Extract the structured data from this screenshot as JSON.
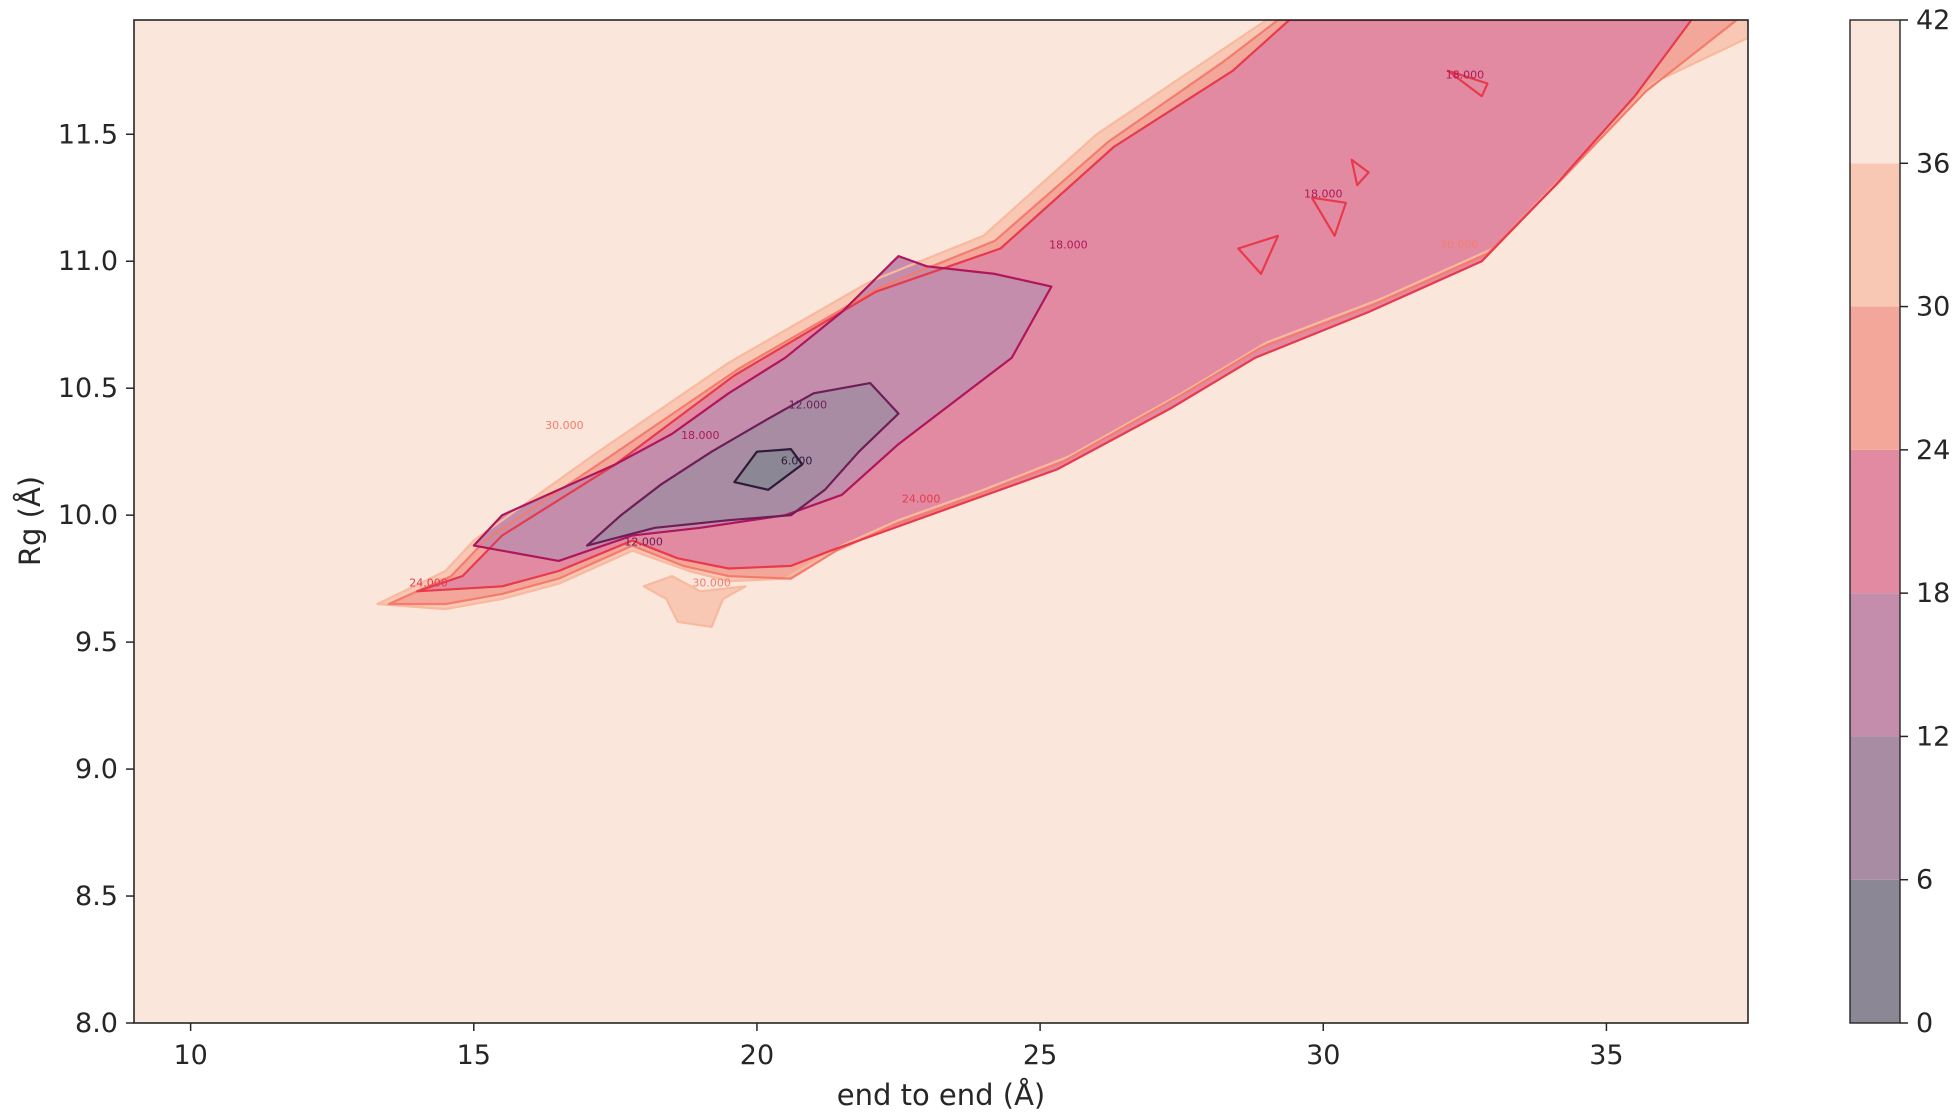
{
  "chart_data": {
    "type": "heatmap",
    "subtype": "filled-contour",
    "title": "",
    "xlabel": "end to end (Å)",
    "ylabel": "Rg (Å)",
    "xlim": [
      9,
      37.5
    ],
    "ylim": [
      8.0,
      11.95
    ],
    "x_ticks": [
      10,
      15,
      20,
      25,
      30,
      35
    ],
    "y_ticks": [
      8.0,
      8.5,
      9.0,
      9.5,
      10.0,
      10.5,
      11.0,
      11.5
    ],
    "grid": false,
    "colorbar": {
      "ticks": [
        0,
        6,
        12,
        18,
        24,
        30,
        36,
        42
      ],
      "range": [
        0,
        42
      ],
      "bands": [
        {
          "from": 0,
          "to": 6,
          "color": "#8c8794"
        },
        {
          "from": 6,
          "to": 12,
          "color": "#a88ca3"
        },
        {
          "from": 12,
          "to": 18,
          "color": "#c48dab"
        },
        {
          "from": 18,
          "to": 24,
          "color": "#e38aa3"
        },
        {
          "from": 24,
          "to": 30,
          "color": "#f3a79a"
        },
        {
          "from": 30,
          "to": 36,
          "color": "#f8c8b5"
        },
        {
          "from": 36,
          "to": 42,
          "color": "#fae6da"
        }
      ]
    },
    "background_level_color": "#fae6da",
    "line_colors": {
      "6": "#2e1b3a",
      "12": "#6d1e58",
      "18": "#b0165a",
      "24": "#e83a4a",
      "30": "#f47c6e",
      "36": "#f8b99e"
    },
    "regions": [
      {
        "level": 30,
        "points": [
          [
            13.3,
            9.65
          ],
          [
            14.5,
            9.78
          ],
          [
            15.0,
            9.9
          ],
          [
            17.2,
            10.25
          ],
          [
            19.5,
            10.6
          ],
          [
            22.0,
            10.92
          ],
          [
            24.0,
            11.1
          ],
          [
            26.0,
            11.5
          ],
          [
            28.0,
            11.8
          ],
          [
            29.0,
            11.95
          ],
          [
            37.5,
            11.95
          ],
          [
            37.5,
            11.88
          ],
          [
            35.8,
            11.7
          ],
          [
            34.3,
            11.35
          ],
          [
            33.0,
            11.05
          ],
          [
            31.0,
            10.85
          ],
          [
            29.0,
            10.68
          ],
          [
            27.5,
            10.48
          ],
          [
            25.5,
            10.23
          ],
          [
            24.0,
            10.1
          ],
          [
            22.5,
            9.98
          ],
          [
            21.5,
            9.88
          ],
          [
            20.5,
            9.75
          ],
          [
            19.5,
            9.74
          ],
          [
            18.8,
            9.78
          ],
          [
            17.8,
            9.86
          ],
          [
            16.5,
            9.73
          ],
          [
            15.5,
            9.67
          ],
          [
            14.5,
            9.63
          ]
        ]
      },
      {
        "level": 30,
        "points": [
          [
            18.0,
            9.72
          ],
          [
            18.5,
            9.76
          ],
          [
            19.0,
            9.7
          ],
          [
            19.8,
            9.72
          ],
          [
            19.4,
            9.67
          ],
          [
            19.2,
            9.56
          ],
          [
            18.6,
            9.58
          ],
          [
            18.4,
            9.67
          ]
        ]
      },
      {
        "level": 24,
        "points": [
          [
            13.5,
            9.65
          ],
          [
            14.6,
            9.76
          ],
          [
            15.2,
            9.9
          ],
          [
            17.4,
            10.23
          ],
          [
            19.7,
            10.58
          ],
          [
            22.2,
            10.9
          ],
          [
            24.2,
            11.08
          ],
          [
            26.2,
            11.47
          ],
          [
            28.2,
            11.78
          ],
          [
            29.2,
            11.95
          ],
          [
            37.3,
            11.95
          ],
          [
            35.7,
            11.67
          ],
          [
            34.2,
            11.32
          ],
          [
            32.9,
            11.03
          ],
          [
            30.9,
            10.83
          ],
          [
            28.9,
            10.66
          ],
          [
            27.4,
            10.46
          ],
          [
            25.4,
            10.21
          ],
          [
            23.9,
            10.08
          ],
          [
            22.4,
            9.96
          ],
          [
            21.4,
            9.86
          ],
          [
            20.6,
            9.75
          ],
          [
            19.5,
            9.76
          ],
          [
            18.7,
            9.8
          ],
          [
            17.8,
            9.88
          ],
          [
            16.5,
            9.75
          ],
          [
            15.5,
            9.69
          ],
          [
            14.5,
            9.65
          ]
        ]
      },
      {
        "level": 18,
        "points": [
          [
            14.0,
            9.7
          ],
          [
            14.8,
            9.76
          ],
          [
            15.5,
            9.92
          ],
          [
            17.5,
            10.2
          ],
          [
            19.6,
            10.55
          ],
          [
            22.1,
            10.88
          ],
          [
            24.3,
            11.05
          ],
          [
            26.3,
            11.45
          ],
          [
            28.4,
            11.75
          ],
          [
            29.4,
            11.95
          ],
          [
            36.5,
            11.95
          ],
          [
            35.5,
            11.65
          ],
          [
            34.1,
            11.3
          ],
          [
            32.8,
            11.0
          ],
          [
            30.8,
            10.8
          ],
          [
            28.8,
            10.62
          ],
          [
            27.3,
            10.42
          ],
          [
            25.3,
            10.18
          ],
          [
            23.8,
            10.06
          ],
          [
            22.3,
            9.94
          ],
          [
            21.3,
            9.86
          ],
          [
            20.6,
            9.8
          ],
          [
            19.5,
            9.79
          ],
          [
            18.6,
            9.83
          ],
          [
            17.8,
            9.9
          ],
          [
            16.5,
            9.78
          ],
          [
            15.5,
            9.72
          ]
        ]
      },
      {
        "level": 12,
        "points": [
          [
            15.0,
            9.88
          ],
          [
            16.5,
            9.82
          ],
          [
            17.8,
            9.92
          ],
          [
            19.0,
            9.95
          ],
          [
            20.5,
            10.0
          ],
          [
            21.5,
            10.08
          ],
          [
            22.5,
            10.28
          ],
          [
            23.5,
            10.45
          ],
          [
            24.5,
            10.62
          ],
          [
            25.2,
            10.9
          ],
          [
            24.2,
            10.95
          ],
          [
            23.0,
            10.98
          ],
          [
            22.5,
            11.02
          ],
          [
            21.5,
            10.8
          ],
          [
            20.5,
            10.62
          ],
          [
            19.5,
            10.48
          ],
          [
            18.5,
            10.32
          ],
          [
            17.5,
            10.2
          ],
          [
            16.5,
            10.1
          ],
          [
            15.5,
            10.0
          ]
        ]
      },
      {
        "level": 6,
        "points": [
          [
            17.0,
            9.88
          ],
          [
            18.2,
            9.95
          ],
          [
            19.5,
            9.98
          ],
          [
            20.6,
            10.0
          ],
          [
            21.2,
            10.1
          ],
          [
            21.8,
            10.25
          ],
          [
            22.5,
            10.4
          ],
          [
            22.0,
            10.52
          ],
          [
            21.0,
            10.48
          ],
          [
            20.2,
            10.38
          ],
          [
            19.2,
            10.25
          ],
          [
            18.3,
            10.12
          ],
          [
            17.6,
            10.0
          ]
        ]
      },
      {
        "level": 0,
        "points": [
          [
            19.6,
            10.13
          ],
          [
            20.2,
            10.1
          ],
          [
            20.8,
            10.2
          ],
          [
            20.6,
            10.26
          ],
          [
            20.0,
            10.25
          ]
        ]
      },
      {
        "level": 18,
        "points": [
          [
            28.5,
            11.05
          ],
          [
            29.2,
            11.1
          ],
          [
            28.9,
            10.95
          ]
        ]
      },
      {
        "level": 18,
        "points": [
          [
            29.8,
            11.25
          ],
          [
            30.4,
            11.23
          ],
          [
            30.2,
            11.1
          ]
        ]
      },
      {
        "level": 18,
        "points": [
          [
            32.2,
            11.75
          ],
          [
            32.9,
            11.7
          ],
          [
            32.8,
            11.65
          ]
        ]
      },
      {
        "level": 18,
        "points": [
          [
            30.5,
            11.4
          ],
          [
            30.8,
            11.35
          ],
          [
            30.6,
            11.3
          ]
        ]
      }
    ],
    "contour_labels": [
      {
        "level": 6,
        "text": "6.000",
        "x": 20.7,
        "y": 10.2
      },
      {
        "level": 12,
        "text": "12.000",
        "x": 20.9,
        "y": 10.42
      },
      {
        "level": 12,
        "text": "12.000",
        "x": 18.0,
        "y": 9.88
      },
      {
        "level": 18,
        "text": "18.000",
        "x": 19.0,
        "y": 10.3
      },
      {
        "level": 18,
        "text": "18.000",
        "x": 25.5,
        "y": 11.05
      },
      {
        "level": 18,
        "text": "18.000",
        "x": 30.0,
        "y": 11.25
      },
      {
        "level": 18,
        "text": "18.000",
        "x": 32.5,
        "y": 11.72
      },
      {
        "level": 24,
        "text": "24.000",
        "x": 14.2,
        "y": 9.72
      },
      {
        "level": 24,
        "text": "24.000",
        "x": 22.9,
        "y": 10.05
      },
      {
        "level": 30,
        "text": "30.000",
        "x": 16.6,
        "y": 10.34
      },
      {
        "level": 30,
        "text": "30.000",
        "x": 19.2,
        "y": 9.72
      },
      {
        "level": 30,
        "text": "30.000",
        "x": 32.4,
        "y": 11.05
      }
    ]
  }
}
